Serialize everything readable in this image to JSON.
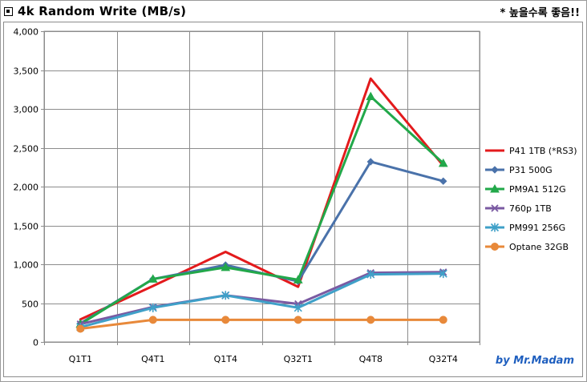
{
  "header": {
    "title": "4k Random Write (MB/s)",
    "note": "* 높을수록 좋음!!",
    "credit": "by Mr.Madam"
  },
  "chart_data": {
    "type": "line",
    "categories": [
      "Q1T1",
      "Q4T1",
      "Q1T4",
      "Q32T1",
      "Q4T8",
      "Q32T4"
    ],
    "ylim": [
      0,
      4000
    ],
    "yticks": [
      0,
      500,
      1000,
      1500,
      2000,
      2500,
      3000,
      3500,
      4000
    ],
    "ytick_labels": [
      "0",
      "500",
      "1,000",
      "1,500",
      "2,000",
      "2,500",
      "3,000",
      "3,500",
      "4,000"
    ],
    "grid": true,
    "legend": "right",
    "series": [
      {
        "name": "P41 1TB (*RS3)",
        "color": "#e31a1c",
        "marker": "none",
        "values": [
          290,
          720,
          1160,
          710,
          3390,
          2270
        ]
      },
      {
        "name": "P31 500G",
        "color": "#4a72aa",
        "marker": "diamond",
        "values": [
          240,
          810,
          990,
          780,
          2320,
          2070
        ]
      },
      {
        "name": "PM9A1 512G",
        "color": "#22a84a",
        "marker": "triangle",
        "values": [
          230,
          810,
          960,
          800,
          3160,
          2300
        ]
      },
      {
        "name": "760p 1TB",
        "color": "#7a5aa2",
        "marker": "x",
        "values": [
          230,
          450,
          600,
          490,
          890,
          900
        ]
      },
      {
        "name": "PM991 256G",
        "color": "#3fa0c8",
        "marker": "star",
        "values": [
          190,
          440,
          600,
          440,
          870,
          880
        ]
      },
      {
        "name": "Optane 32GB",
        "color": "#e8893a",
        "marker": "circle",
        "values": [
          170,
          285,
          285,
          285,
          285,
          285
        ]
      }
    ]
  }
}
